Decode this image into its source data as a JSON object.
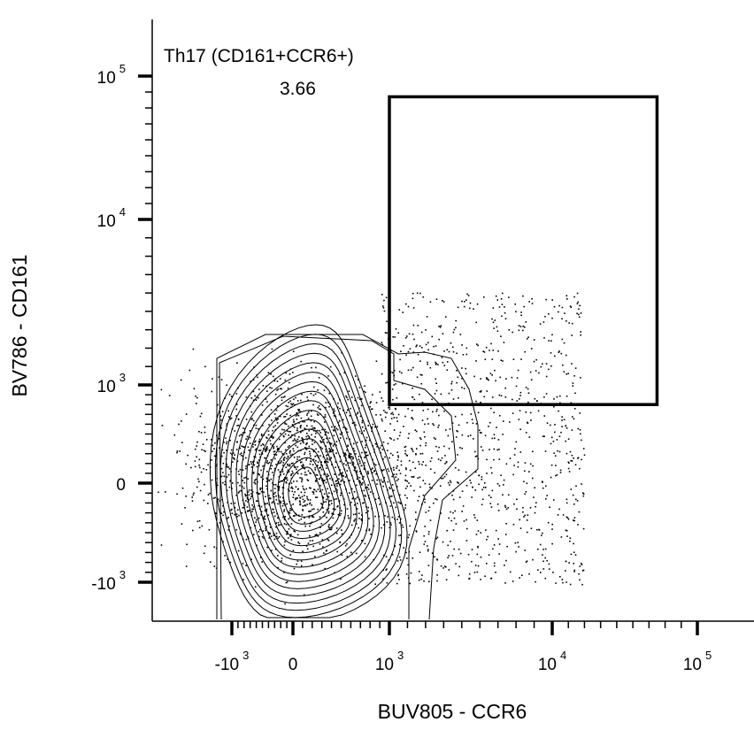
{
  "chart_data": {
    "type": "contour",
    "xlabel": "BUV805 - CCR6",
    "ylabel": "BV786 - CD161",
    "x_scale": "biexponential",
    "y_scale": "biexponential",
    "x_ticks": [
      {
        "value": -1000,
        "base": "-10",
        "exp": "3"
      },
      {
        "value": 0,
        "base": "0",
        "exp": ""
      },
      {
        "value": 1000,
        "base": "10",
        "exp": "3"
      },
      {
        "value": 10000,
        "base": "10",
        "exp": "4"
      },
      {
        "value": 100000,
        "base": "10",
        "exp": "5"
      }
    ],
    "y_ticks": [
      {
        "value": -1000,
        "base": "-10",
        "exp": "3"
      },
      {
        "value": 0,
        "base": "0",
        "exp": ""
      },
      {
        "value": 1000,
        "base": "10",
        "exp": "3"
      },
      {
        "value": 10000,
        "base": "10",
        "exp": "4"
      },
      {
        "value": 100000,
        "base": "10",
        "exp": "5"
      }
    ],
    "gate": {
      "name": "Th17 (CD161+CCR6+)",
      "percent": "3.66",
      "x_range": [
        1000,
        75000
      ],
      "y_range": [
        800,
        87000
      ]
    },
    "population": {
      "center": [
        200,
        200
      ],
      "x_extent": [
        -1200,
        1200
      ],
      "y_extent": [
        -1500,
        2000
      ]
    }
  }
}
